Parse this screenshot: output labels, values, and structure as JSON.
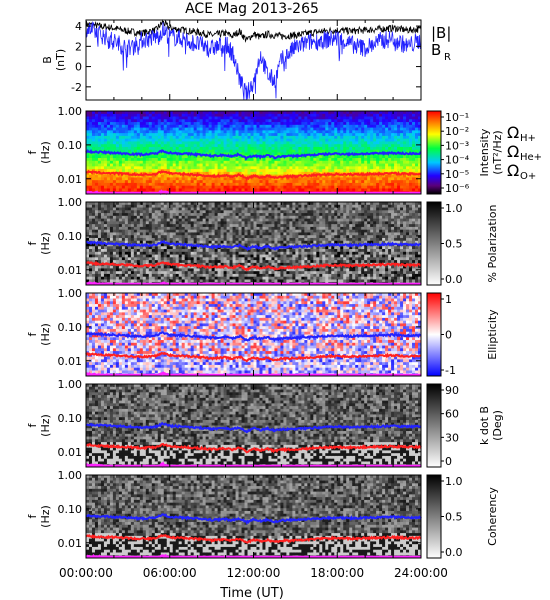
{
  "title": "ACE Mag 2013-265",
  "xlabel": "Time (UT)",
  "xticks": [
    "00:00:00",
    "06:00:00",
    "12:00:00",
    "18:00:00",
    "24:00:00"
  ],
  "legend_top": [
    {
      "label": "|B|",
      "color": "#000000"
    },
    {
      "label": "B",
      "sub": "R",
      "color": "#2222ff"
    }
  ],
  "legend_mid": [
    {
      "label": "Ω",
      "sub": "H+",
      "color": "#2222ff"
    },
    {
      "label": "Ω",
      "sub": "He+",
      "color": "#ff2020"
    },
    {
      "label": "Ω",
      "sub": "O+",
      "color": "#ff20ff"
    }
  ],
  "chart_data": [
    {
      "type": "line",
      "ylabel": "B",
      "yunit": "(nT)",
      "x_range_hours": [
        0,
        24
      ],
      "ylim": [
        -3.3,
        4.6
      ],
      "yticks": [
        "4",
        "2",
        "0",
        "-2"
      ],
      "series": [
        {
          "name": "|B|",
          "color": "#000000",
          "x": [
            0,
            1,
            2,
            3,
            4,
            5,
            5.5,
            6,
            7,
            8,
            9,
            10,
            10.5,
            11,
            11.5,
            12,
            12.5,
            13,
            14,
            15,
            16,
            17,
            18,
            19,
            20,
            21,
            22,
            23,
            24
          ],
          "values": [
            4.2,
            4.0,
            3.8,
            3.5,
            3.3,
            3.6,
            4.4,
            3.8,
            3.6,
            3.4,
            3.1,
            3.3,
            3.0,
            3.5,
            2.6,
            3.2,
            2.9,
            3.2,
            3.0,
            3.1,
            3.3,
            3.5,
            3.6,
            3.5,
            3.6,
            3.7,
            3.8,
            3.6,
            3.7
          ]
        },
        {
          "name": "B",
          "color": "#2222ff",
          "x": [
            0,
            1,
            2,
            3,
            4,
            5,
            5.5,
            6,
            7,
            8,
            9,
            10,
            10.5,
            11,
            11.5,
            12,
            12.5,
            13,
            13.5,
            14,
            15,
            16,
            17,
            18,
            19,
            20,
            21,
            22,
            23,
            24
          ],
          "values": [
            3.8,
            3.2,
            2.5,
            1.8,
            2.6,
            2.9,
            3.6,
            3.0,
            2.7,
            2.2,
            1.8,
            2.2,
            1.4,
            -1.2,
            -2.8,
            -1.5,
            1.2,
            -0.8,
            -1.4,
            0.6,
            1.9,
            2.4,
            2.6,
            2.8,
            2.2,
            1.8,
            2.5,
            2.8,
            2.0,
            2.6
          ]
        }
      ]
    },
    {
      "type": "heatmap",
      "ylabel": "f",
      "yunit": "(Hz)",
      "yticks": [
        "1.00",
        "0.10",
        "0.01"
      ],
      "colorbar_label": "Intensity",
      "colorbar_unit": "(nT²/Hz)",
      "colorbar_ticks": [
        "10⁻¹",
        "10⁻²",
        "10⁻³",
        "10⁻⁴",
        "10⁻⁵",
        "10⁻⁶"
      ],
      "colorscale": "rainbow"
    },
    {
      "type": "heatmap",
      "ylabel": "f",
      "yunit": "(Hz)",
      "yticks": [
        "1.00",
        "0.10",
        "0.01"
      ],
      "colorbar_label": "% Polarization",
      "colorbar_ticks": [
        "1.0",
        "0.5",
        "0.0"
      ],
      "colorscale": "gray"
    },
    {
      "type": "heatmap",
      "ylabel": "f",
      "yunit": "(Hz)",
      "yticks": [
        "1.00",
        "0.10",
        "0.01"
      ],
      "colorbar_label": "Ellipticity",
      "colorbar_ticks": [
        "1",
        "0",
        "-1"
      ],
      "colorscale": "bwr"
    },
    {
      "type": "heatmap",
      "ylabel": "f",
      "yunit": "(Hz)",
      "yticks": [
        "1.00",
        "0.10",
        "0.01"
      ],
      "colorbar_label": "k dot B",
      "colorbar_unit": "(Deg)",
      "colorbar_ticks": [
        "90",
        "60",
        "30",
        "0"
      ],
      "colorscale": "gray"
    },
    {
      "type": "heatmap",
      "ylabel": "f",
      "yunit": "(Hz)",
      "yticks": [
        "1.00",
        "0.10",
        "0.01"
      ],
      "colorbar_label": "Coherency",
      "colorbar_ticks": [
        "1.0",
        "0.5",
        "0.0"
      ],
      "colorscale": "gray"
    }
  ],
  "gyrofrequency_lines": {
    "x_hours": [
      0,
      1,
      2,
      3,
      4,
      5,
      5.5,
      6,
      7,
      8,
      9,
      10,
      10.5,
      11,
      11.5,
      12,
      12.5,
      13,
      13.5,
      14,
      15,
      16,
      17,
      18,
      19,
      20,
      21,
      22,
      23,
      24
    ],
    "H+_hz": [
      0.064,
      0.061,
      0.058,
      0.055,
      0.052,
      0.055,
      0.067,
      0.058,
      0.055,
      0.052,
      0.047,
      0.05,
      0.046,
      0.053,
      0.04,
      0.049,
      0.044,
      0.049,
      0.042,
      0.046,
      0.047,
      0.05,
      0.053,
      0.055,
      0.053,
      0.055,
      0.056,
      0.058,
      0.055,
      0.056
    ],
    "He+_hz": [
      0.016,
      0.015,
      0.0145,
      0.0137,
      0.013,
      0.0137,
      0.0167,
      0.0145,
      0.0137,
      0.013,
      0.0118,
      0.0125,
      0.0115,
      0.0133,
      0.01,
      0.0122,
      0.011,
      0.0122,
      0.0105,
      0.0115,
      0.0118,
      0.0125,
      0.0133,
      0.0137,
      0.0133,
      0.0137,
      0.014,
      0.0145,
      0.0137,
      0.014
    ],
    "O+_hz": [
      0.004,
      0.0038,
      0.0036,
      0.0034,
      0.0033,
      0.0034,
      0.0042,
      0.0036,
      0.0034,
      0.0033,
      0.003,
      0.0031,
      0.0029,
      0.0033,
      0.0025,
      0.0031,
      0.0028,
      0.0031,
      0.0026,
      0.0029,
      0.003,
      0.0031,
      0.0033,
      0.0034,
      0.0033,
      0.0034,
      0.0035,
      0.0036,
      0.0034,
      0.0035
    ]
  }
}
